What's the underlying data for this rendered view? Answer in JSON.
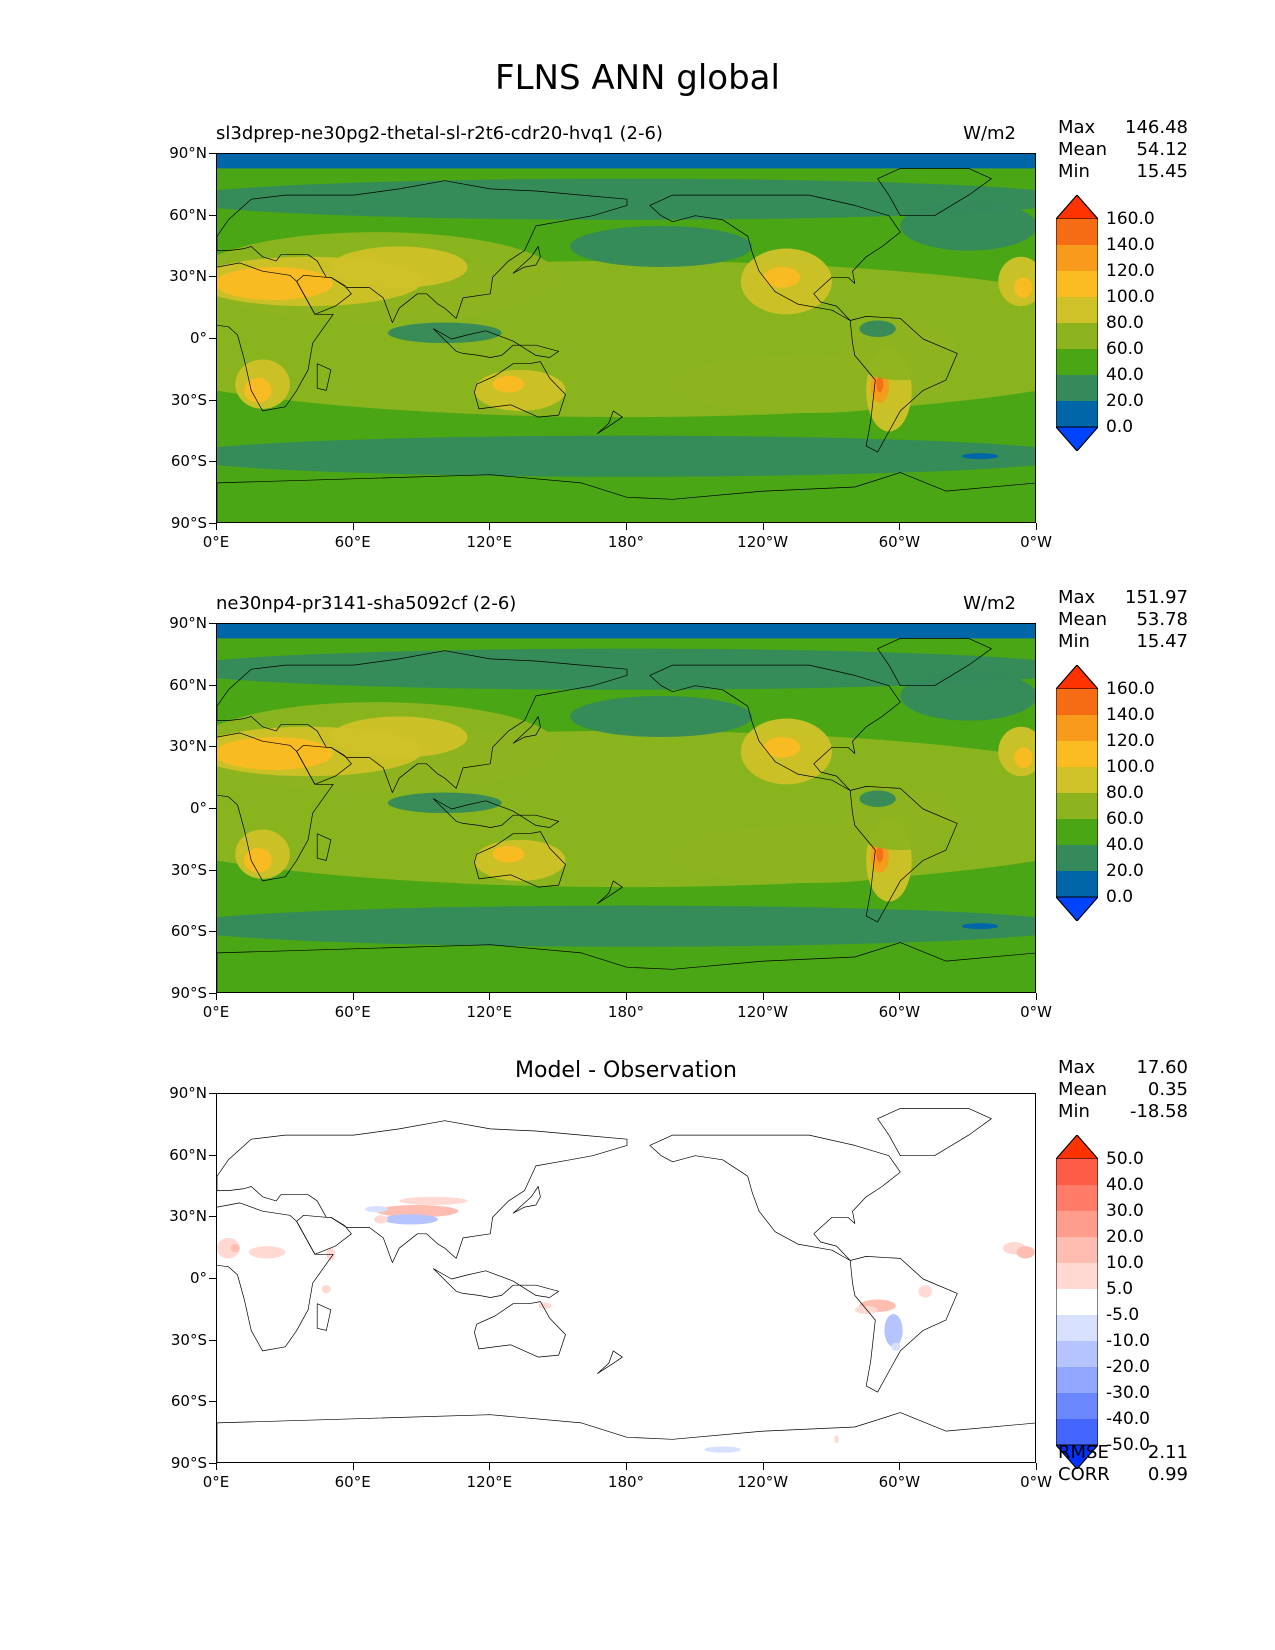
{
  "page": {
    "title": "FLNS ANN global"
  },
  "xticks": [
    "0°E",
    "60°E",
    "120°E",
    "180°",
    "120°W",
    "60°W",
    "0°W"
  ],
  "yticks": [
    "90°N",
    "60°N",
    "30°N",
    "0°",
    "30°S",
    "60°S",
    "90°S"
  ],
  "colors": {
    "model": [
      "#0044ff",
      "#0066a8",
      "#358a5c",
      "#4aa614",
      "#8db41f",
      "#cfc228",
      "#fbbb22",
      "#f89a1b",
      "#f66c15",
      "#ff3300"
    ],
    "diff": [
      "#0033ff",
      "#4466ff",
      "#6b87ff",
      "#90a6ff",
      "#b5c4ff",
      "#d8e0ff",
      "#ffffff",
      "#ffd9d2",
      "#ffbcb0",
      "#ff9d8c",
      "#ff7d68",
      "#ff5c45",
      "#ff3300"
    ]
  },
  "panels": [
    {
      "label": "sl3dprep-ne30pg2-thetal-sl-r2t6-cdr20-hvq1 (2-6)",
      "units": "W/m2",
      "stats": [
        {
          "name": "Max",
          "value": "146.48"
        },
        {
          "name": "Mean",
          "value": "54.12"
        },
        {
          "name": "Min",
          "value": "15.45"
        }
      ],
      "colorbar_labels": [
        "160.0",
        "140.0",
        "120.0",
        "100.0",
        "80.0",
        "60.0",
        "40.0",
        "20.0",
        "0.0"
      ]
    },
    {
      "label": "ne30np4-pr3141-sha5092cf (2-6)",
      "units": "W/m2",
      "stats": [
        {
          "name": "Max",
          "value": "151.97"
        },
        {
          "name": "Mean",
          "value": "53.78"
        },
        {
          "name": "Min",
          "value": "15.47"
        }
      ],
      "colorbar_labels": [
        "160.0",
        "140.0",
        "120.0",
        "100.0",
        "80.0",
        "60.0",
        "40.0",
        "20.0",
        "0.0"
      ]
    },
    {
      "title": "Model - Observation",
      "stats": [
        {
          "name": "Max",
          "value": "17.60"
        },
        {
          "name": "Mean",
          "value": "0.35"
        },
        {
          "name": "Min",
          "value": "-18.58"
        }
      ],
      "colorbar_labels": [
        "50.0",
        "40.0",
        "30.0",
        "20.0",
        "10.0",
        "5.0",
        "-5.0",
        "-10.0",
        "-20.0",
        "-30.0",
        "-40.0",
        "-50.0"
      ],
      "extra_stats": [
        {
          "name": "RMSE",
          "value": "2.11"
        },
        {
          "name": "CORR",
          "value": "0.99"
        }
      ]
    }
  ],
  "chart_data": [
    {
      "type": "heatmap",
      "subtitle": "sl3dprep-ne30pg2-thetal-sl-r2t6-cdr20-hvq1 (2-6)",
      "units": "W/m2",
      "xlim": [
        0,
        360
      ],
      "ylim": [
        -90,
        90
      ],
      "levels": [
        0,
        20,
        40,
        60,
        80,
        100,
        120,
        140,
        160
      ],
      "stats": {
        "max": 146.48,
        "mean": 54.12,
        "min": 15.45
      }
    },
    {
      "type": "heatmap",
      "subtitle": "ne30np4-pr3141-sha5092cf (2-6)",
      "units": "W/m2",
      "xlim": [
        0,
        360
      ],
      "ylim": [
        -90,
        90
      ],
      "levels": [
        0,
        20,
        40,
        60,
        80,
        100,
        120,
        140,
        160
      ],
      "stats": {
        "max": 151.97,
        "mean": 53.78,
        "min": 15.47
      }
    },
    {
      "type": "heatmap",
      "title": "Model - Observation",
      "xlim": [
        0,
        360
      ],
      "ylim": [
        -90,
        90
      ],
      "levels": [
        -50,
        -40,
        -30,
        -20,
        -10,
        -5,
        5,
        10,
        20,
        30,
        40,
        50
      ],
      "stats": {
        "max": 17.6,
        "mean": 0.35,
        "min": -18.58,
        "rmse": 2.11,
        "corr": 0.99
      }
    }
  ]
}
